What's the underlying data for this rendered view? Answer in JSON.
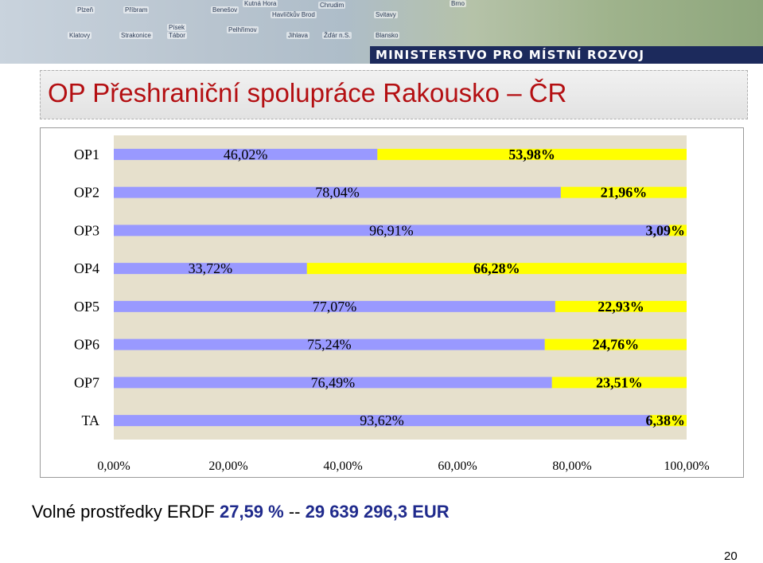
{
  "banner": {
    "towns": [
      "Plzeň",
      "Příbram",
      "Benešov",
      "Kutná Hora",
      "Chrudim",
      "Havlíčkův Brod",
      "Svitavy",
      "Klatovy",
      "Strakonice",
      "Písek",
      "Tábor",
      "Pelhřimov",
      "Jihlava",
      "Žďár n.S.",
      "Blansko",
      "Brno"
    ],
    "ministry": "MINISTERSTVO PRO MÍSTNÍ ROZVOJ"
  },
  "title": "OP Přeshraniční spolupráce Rakousko – ČR",
  "chart_data": {
    "type": "bar",
    "orientation": "horizontal",
    "stacked": "100%",
    "categories": [
      "OP1",
      "OP2",
      "OP3",
      "OP4",
      "OP5",
      "OP6",
      "OP7",
      "TA"
    ],
    "series": [
      {
        "values": [
          46.02,
          78.04,
          96.91,
          33.72,
          77.07,
          75.24,
          76.49,
          93.62
        ],
        "labels": [
          "46,02%",
          "78,04%",
          "96,91%",
          "33,72%",
          "77,07%",
          "75,24%",
          "76,49%",
          "93,62%"
        ],
        "color": "#9999ff"
      },
      {
        "values": [
          53.98,
          21.96,
          3.09,
          66.28,
          22.93,
          24.76,
          23.51,
          6.38
        ],
        "labels": [
          "53,98%",
          "21,96%",
          "3,09%",
          "66,28%",
          "22,93%",
          "24,76%",
          "23,51%",
          "6,38%"
        ],
        "color": "#ffff00"
      }
    ],
    "xlim": [
      0,
      100
    ],
    "xticks": [
      "0,00%",
      "20,00%",
      "40,00%",
      "60,00%",
      "80,00%",
      "100,00%"
    ],
    "legend": "none"
  },
  "footer": {
    "label": "Volné prostředky ERDF ",
    "percent": "27,59 %",
    "separator": " -- ",
    "amount": "29 639 296,3 EUR"
  },
  "page_number": "20"
}
